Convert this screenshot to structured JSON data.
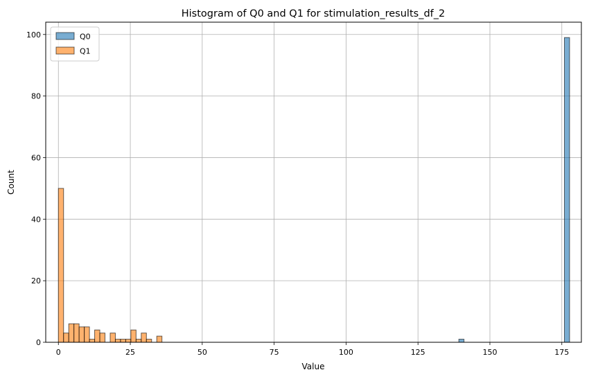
{
  "chart_data": {
    "type": "bar",
    "title": "Histogram of Q0 and Q1 for stimulation_results_df_2",
    "xlabel": "Value",
    "ylabel": "Count",
    "xlim": [
      -4.4,
      181.8
    ],
    "ylim": [
      0,
      104
    ],
    "xticks": [
      0,
      25,
      50,
      75,
      100,
      125,
      150,
      175
    ],
    "yticks": [
      0,
      20,
      40,
      60,
      80,
      100
    ],
    "grid": true,
    "legend_position": "top-left",
    "bin_width": 1.8,
    "series": [
      {
        "name": "Q0",
        "color": "#1f77b4",
        "bins": [
          {
            "x": 139.2,
            "count": 1
          },
          {
            "x": 175.9,
            "count": 99
          }
        ]
      },
      {
        "name": "Q1",
        "color": "#ff7f0e",
        "bins": [
          {
            "x": 0.0,
            "count": 50
          },
          {
            "x": 1.8,
            "count": 3
          },
          {
            "x": 3.6,
            "count": 6
          },
          {
            "x": 5.4,
            "count": 6
          },
          {
            "x": 7.2,
            "count": 5
          },
          {
            "x": 9.0,
            "count": 5
          },
          {
            "x": 10.8,
            "count": 1
          },
          {
            "x": 12.6,
            "count": 4
          },
          {
            "x": 14.4,
            "count": 3
          },
          {
            "x": 18.0,
            "count": 3
          },
          {
            "x": 19.8,
            "count": 1
          },
          {
            "x": 21.6,
            "count": 1
          },
          {
            "x": 23.4,
            "count": 1
          },
          {
            "x": 25.2,
            "count": 4
          },
          {
            "x": 27.0,
            "count": 1
          },
          {
            "x": 28.8,
            "count": 3
          },
          {
            "x": 30.6,
            "count": 1
          },
          {
            "x": 34.2,
            "count": 2
          }
        ]
      }
    ]
  }
}
